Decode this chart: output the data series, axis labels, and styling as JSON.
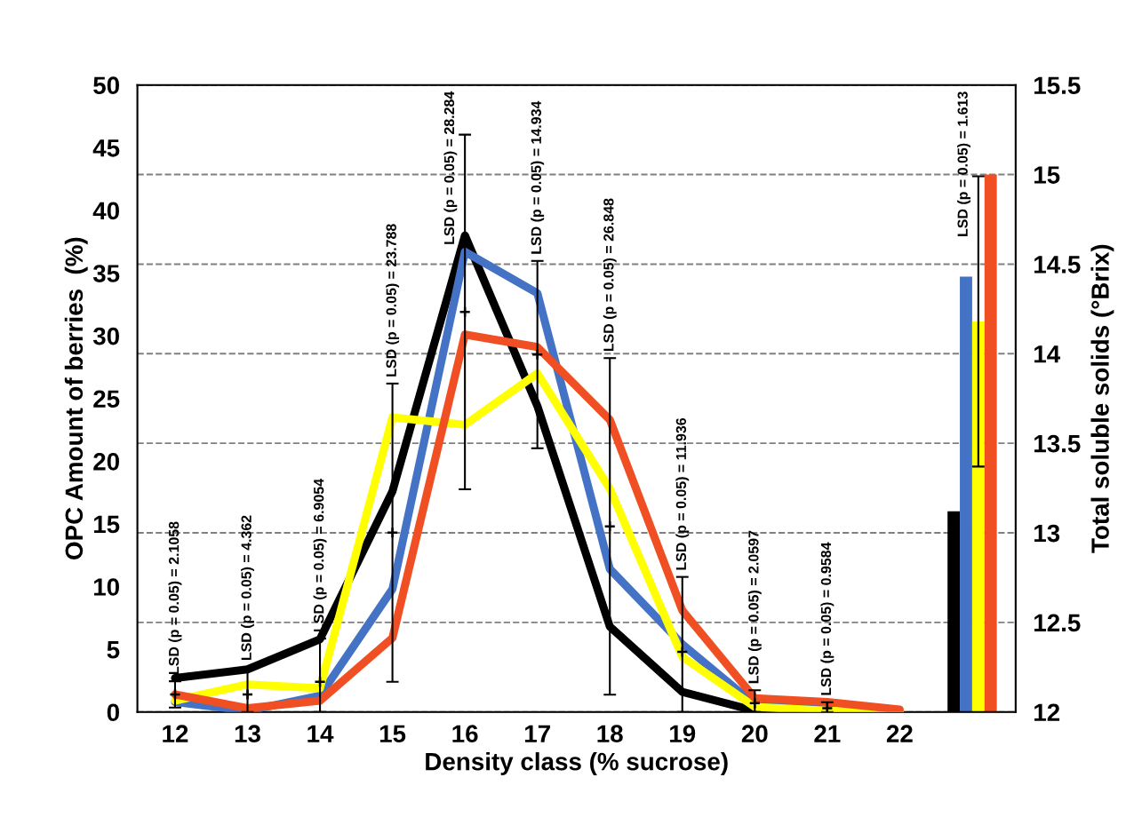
{
  "chart_data": {
    "type": "line",
    "xlabel": "Density class (% sucrose)",
    "ylabel": "OPC Amount of berries  (%)",
    "y2label": "Total soluble solids (°Brix)",
    "categories": [
      "12",
      "13",
      "14",
      "15",
      "16",
      "17",
      "18",
      "19",
      "20",
      "21",
      "22",
      null
    ],
    "series": [
      {
        "color": "#000000",
        "values": [
          2.7,
          3.4,
          5.8,
          17.6,
          38.0,
          24.4,
          6.8,
          1.6,
          0.1,
          0,
          0,
          null
        ]
      },
      {
        "color": "#4472c4",
        "values": [
          0.8,
          0.1,
          1.3,
          9.8,
          36.7,
          33.4,
          11.4,
          5.4,
          0.6,
          0.2,
          0,
          null
        ]
      },
      {
        "color": "#ffff00",
        "values": [
          0.9,
          2.2,
          1.9,
          23.5,
          22.9,
          27.0,
          17.8,
          4.4,
          0.4,
          0.1,
          0,
          null
        ]
      },
      {
        "color": "#f04e23",
        "values": [
          1.4,
          0.3,
          0.9,
          5.9,
          30.1,
          29.1,
          23.3,
          8.1,
          1.1,
          0.8,
          0.2,
          null
        ]
      },
      {
        "type": "scatter",
        "color": "#000000",
        "marker": "cross",
        "values": [
          1.4,
          1.4,
          2.4,
          14.3,
          31.9,
          28.5,
          14.8,
          4.8,
          0.7,
          0.3,
          null,
          null
        ],
        "errors": [
          1.05,
          [
            0,
            3.58
          ],
          [
            0,
            5.85
          ],
          11.89,
          14.14,
          7.47,
          13.42,
          [
            0,
            10.77
          ],
          [
            0,
            1.73
          ],
          [
            0,
            0.78
          ],
          null,
          null
        ]
      },
      {
        "type": "bar",
        "axis": "y2",
        "color": "#000000",
        "values": [
          null,
          null,
          null,
          null,
          null,
          null,
          null,
          null,
          null,
          null,
          null,
          13.12
        ]
      },
      {
        "type": "bar",
        "axis": "y2",
        "color": "#4472c4",
        "values": [
          null,
          null,
          null,
          null,
          null,
          null,
          null,
          null,
          null,
          null,
          null,
          14.43
        ]
      },
      {
        "type": "bar",
        "axis": "y2",
        "color": "#ffff00",
        "values": [
          null,
          null,
          null,
          null,
          null,
          null,
          null,
          null,
          null,
          null,
          null,
          14.18
        ],
        "errors": [
          null,
          null,
          null,
          null,
          null,
          null,
          null,
          null,
          null,
          null,
          null,
          0.81
        ]
      },
      {
        "type": "bar",
        "axis": "y2",
        "color": "#f04e23",
        "values": [
          null,
          null,
          null,
          null,
          null,
          null,
          null,
          null,
          null,
          null,
          null,
          15.0
        ]
      }
    ],
    "ylim": [
      0,
      50
    ],
    "yticks": [
      0,
      5,
      10,
      15,
      20,
      25,
      30,
      35,
      40,
      45,
      50
    ],
    "y2lim": [
      12,
      15.5
    ],
    "y2ticks": [
      12,
      12.5,
      13,
      13.5,
      14,
      14.5,
      15,
      15.5
    ],
    "grid": "y",
    "line_style": "solid",
    "marker": "none",
    "legend": false,
    "annotations": [
      "LSD (p = 0.05) = 2.1058",
      "LSD (p = 0.05) = 4.362",
      "LSD (p = 0.05) = 6.9054",
      "LSD (p = 0.05) = 23.788",
      "LSD (p = 0.05) = 28.284",
      "LSD (p = 0.05) = 14.934",
      "LSD (p = 0.05) = 26.848",
      "LSD (p = 0.05) = 11.936",
      "LSD (p = 0.05) = 2.0597",
      "LSD (p = 0.05) = 0.9584",
      "LSD (p = 0.05) = 1.613"
    ]
  }
}
